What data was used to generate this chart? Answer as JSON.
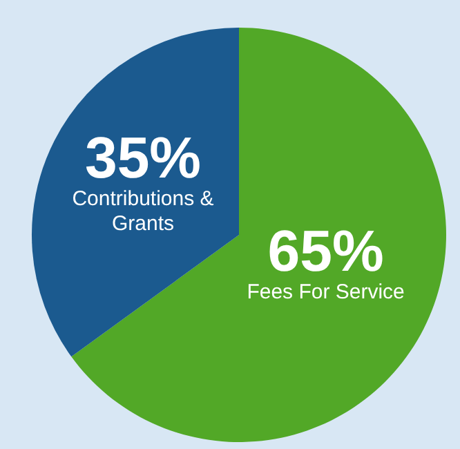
{
  "chart_data": {
    "type": "pie",
    "categories": [
      "Fees For Service",
      "Contributions & Grants"
    ],
    "values": [
      65,
      35
    ],
    "colors": [
      "#52a827",
      "#1b5a8f"
    ],
    "value_labels": [
      "65%",
      "35%"
    ]
  }
}
